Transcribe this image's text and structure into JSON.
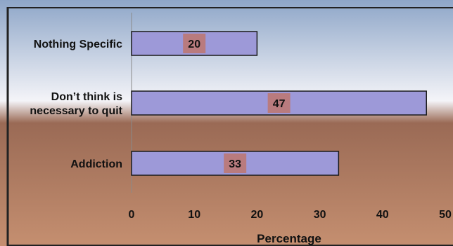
{
  "chart_data": {
    "type": "bar",
    "orientation": "horizontal",
    "categories": [
      "Nothing Specific",
      "Don’t think is necessary to quit",
      "Addiction"
    ],
    "category_lines": [
      [
        "Nothing Specific"
      ],
      [
        "Don’t think is",
        "necessary to quit"
      ],
      [
        "Addiction"
      ]
    ],
    "values": [
      20,
      47,
      33
    ],
    "data_labels": [
      "20",
      "47",
      "33"
    ],
    "xlabel": "Percentage",
    "ylabel": "",
    "title": "",
    "xlim": [
      0,
      50
    ],
    "xticks": [
      0,
      10,
      20,
      30,
      40,
      50
    ],
    "xtick_labels": [
      "0",
      "10",
      "20",
      "30",
      "40",
      "50"
    ],
    "grid": false,
    "legend": "none"
  },
  "colors": {
    "bar_fill": "#9d99d8",
    "bar_stroke": "#1a1a1a",
    "label_box": "#b97b7e",
    "bg_top": "#8ea6c8",
    "bg_mid": "#f4f4f8",
    "bg_band": "#9a6a55",
    "bg_bottom": "#c58f70",
    "frame": "#222222"
  }
}
